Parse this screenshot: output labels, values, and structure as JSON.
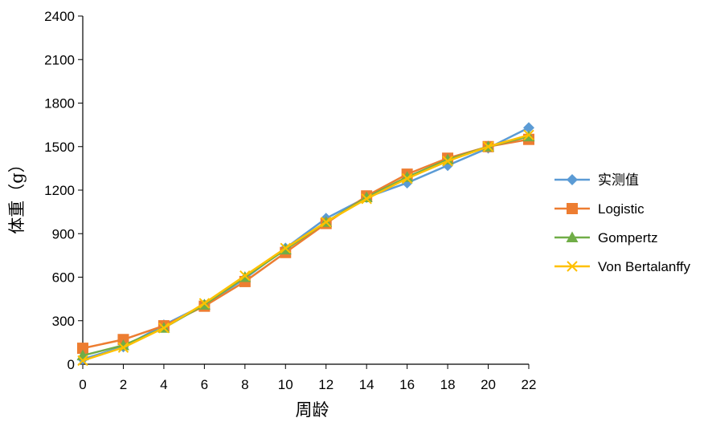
{
  "chart_data": {
    "type": "line",
    "title": "",
    "xlabel": "周龄",
    "ylabel": "体重（g）",
    "x": [
      0,
      2,
      4,
      6,
      8,
      10,
      12,
      14,
      16,
      18,
      20,
      22
    ],
    "x_ticks": [
      "0",
      "2",
      "4",
      "6",
      "8",
      "10",
      "12",
      "14",
      "16",
      "18",
      "20",
      "22"
    ],
    "y_ticks": [
      "0",
      "300",
      "600",
      "900",
      "1200",
      "1500",
      "1800",
      "2100",
      "2400"
    ],
    "xlim": [
      0,
      22
    ],
    "ylim": [
      0,
      2400
    ],
    "grid": false,
    "legend_position": "right",
    "series": [
      {
        "name": "实测值",
        "color": "#5b9bd5",
        "marker": "diamond",
        "values": [
          35,
          120,
          270,
          410,
          590,
          800,
          1005,
          1150,
          1250,
          1370,
          1490,
          1630
        ]
      },
      {
        "name": "Logistic",
        "color": "#ed7d31",
        "marker": "square",
        "values": [
          110,
          170,
          265,
          400,
          570,
          770,
          970,
          1160,
          1310,
          1420,
          1500,
          1550
        ]
      },
      {
        "name": "Gompertz",
        "color": "#70ad47",
        "marker": "triangle",
        "values": [
          60,
          130,
          250,
          410,
          600,
          790,
          980,
          1150,
          1290,
          1410,
          1500,
          1570
        ]
      },
      {
        "name": "Von Bertalanffy",
        "color": "#ffc000",
        "marker": "x",
        "values": [
          25,
          115,
          250,
          420,
          610,
          800,
          980,
          1140,
          1280,
          1400,
          1500,
          1580
        ]
      }
    ]
  }
}
